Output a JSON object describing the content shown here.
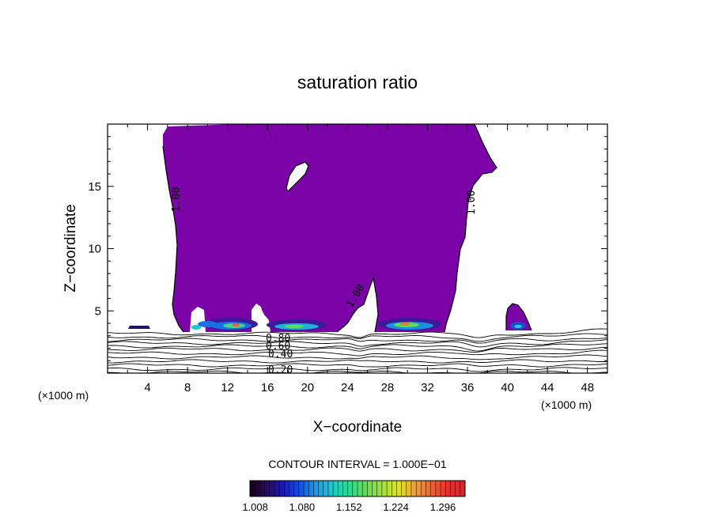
{
  "chart_data": {
    "type": "contour",
    "title": "saturation ratio",
    "xlabel": "X−coordinate",
    "ylabel": "Z−coordinate",
    "x_unit_left": "(×1000 m)",
    "x_unit_right": "(×1000 m)",
    "xlim": [
      0,
      50
    ],
    "ylim": [
      0,
      20
    ],
    "x_ticks": [
      4,
      8,
      12,
      16,
      20,
      24,
      28,
      32,
      36,
      40,
      44,
      48
    ],
    "y_ticks": [
      5,
      10,
      15
    ],
    "contour_interval_text": "CONTOUR INTERVAL = 1.000E−01",
    "contour_labels": [
      "1.00",
      "1.00",
      "1.00",
      "0.80",
      "0.60",
      "0.40",
      "0.20"
    ],
    "colorbar_labels": [
      "1.008",
      "1.080",
      "1.152",
      "1.224",
      "1.296"
    ],
    "colorbar_range": [
      1.0,
      1.33
    ],
    "grid": false,
    "colors": {
      "saturated_fill": "#7a02a7",
      "colorbar_stops": [
        "#180018",
        "#2a0a60",
        "#1a1ab0",
        "#1450e0",
        "#1a9ae8",
        "#20c8c8",
        "#30d890",
        "#60e050",
        "#a0e040",
        "#e0e030",
        "#f0a030",
        "#f06030",
        "#e03030",
        "#d02a2a"
      ]
    }
  }
}
